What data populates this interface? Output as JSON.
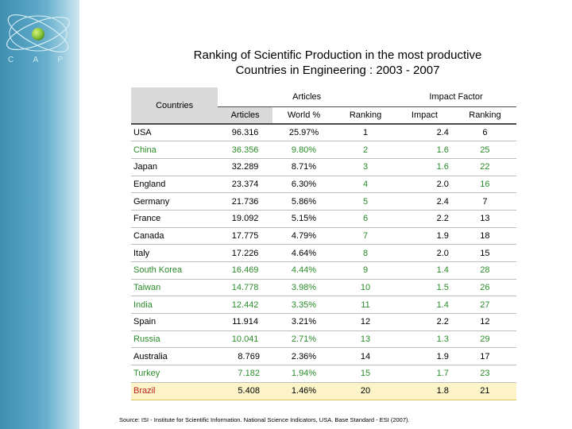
{
  "logo": {
    "text": "C A P E S"
  },
  "title_line1": "Ranking of Scientific Production in the most productive",
  "title_line2": "Countries in  Engineering : 2003 - 2007",
  "headers": {
    "countries": "Countries",
    "articles_group": "Articles",
    "impact_group": "Impact Factor",
    "articles": "Articles",
    "world": "World %",
    "ranking1": "Ranking",
    "impact": "Impact",
    "ranking2": "Ranking"
  },
  "rows": [
    {
      "country": "USA",
      "articles": "96.316",
      "world": "25.97%",
      "ranking": "1",
      "impact": "2.4",
      "impact_ranking": "6"
    },
    {
      "country": "China",
      "articles": "36.356",
      "world": "9.80%",
      "ranking": "2",
      "impact": "1.6",
      "impact_ranking": "25"
    },
    {
      "country": "Japan",
      "articles": "32.289",
      "world": "8.71%",
      "ranking": "3",
      "impact": "1.6",
      "impact_ranking": "22"
    },
    {
      "country": "England",
      "articles": "23.374",
      "world": "6.30%",
      "ranking": "4",
      "impact": "2.0",
      "impact_ranking": "16"
    },
    {
      "country": "Germany",
      "articles": "21.736",
      "world": "5.86%",
      "ranking": "5",
      "impact": "2.4",
      "impact_ranking": "7"
    },
    {
      "country": "France",
      "articles": "19.092",
      "world": "5.15%",
      "ranking": "6",
      "impact": "2.2",
      "impact_ranking": "13"
    },
    {
      "country": "Canada",
      "articles": "17.775",
      "world": "4.79%",
      "ranking": "7",
      "impact": "1.9",
      "impact_ranking": "18"
    },
    {
      "country": "Italy",
      "articles": "17.226",
      "world": "4.64%",
      "ranking": "8",
      "impact": "2.0",
      "impact_ranking": "15"
    },
    {
      "country": "South Korea",
      "articles": "16.469",
      "world": "4.44%",
      "ranking": "9",
      "impact": "1.4",
      "impact_ranking": "28"
    },
    {
      "country": "Taiwan",
      "articles": "14.778",
      "world": "3.98%",
      "ranking": "10",
      "impact": "1.5",
      "impact_ranking": "26"
    },
    {
      "country": "India",
      "articles": "12.442",
      "world": "3.35%",
      "ranking": "11",
      "impact": "1.4",
      "impact_ranking": "27"
    },
    {
      "country": "Spain",
      "articles": "11.914",
      "world": "3.21%",
      "ranking": "12",
      "impact": "2.2",
      "impact_ranking": "12"
    },
    {
      "country": "Russia",
      "articles": "10.041",
      "world": "2.71%",
      "ranking": "13",
      "impact": "1.3",
      "impact_ranking": "29"
    },
    {
      "country": "Australia",
      "articles": "8.769",
      "world": "2.36%",
      "ranking": "14",
      "impact": "1.9",
      "impact_ranking": "17"
    },
    {
      "country": "Turkey",
      "articles": "7.182",
      "world": "1.94%",
      "ranking": "15",
      "impact": "1.7",
      "impact_ranking": "23"
    },
    {
      "country": "Brazil",
      "articles": "5.408",
      "world": "1.46%",
      "ranking": "20",
      "impact": "1.8",
      "impact_ranking": "21"
    }
  ],
  "source": "Source: ISI - Institute for Scientific Information. National Science Indicators, USA. Base Standard - ESI (2007).",
  "colors": {
    "green_text": "#2a8c2a",
    "brazil_text": "#b8201a",
    "brazil_bg": "#fcf3c8"
  }
}
